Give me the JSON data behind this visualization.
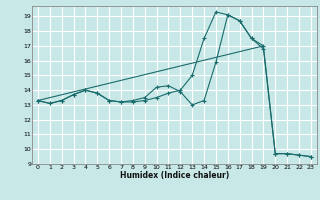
{
  "xlabel": "Humidex (Indice chaleur)",
  "bg_color": "#c8e8e8",
  "grid_color": "#ffffff",
  "line_color": "#1a6b6b",
  "xlim": [
    -0.5,
    23.5
  ],
  "ylim": [
    9.0,
    19.7
  ],
  "xticks": [
    0,
    1,
    2,
    3,
    4,
    5,
    6,
    7,
    8,
    9,
    10,
    11,
    12,
    13,
    14,
    15,
    16,
    17,
    18,
    19,
    20,
    21,
    22,
    23
  ],
  "yticks": [
    9,
    10,
    11,
    12,
    13,
    14,
    15,
    16,
    17,
    18,
    19
  ],
  "line1_x": [
    0,
    1,
    2,
    3,
    4,
    5,
    6,
    7,
    8,
    9,
    10,
    11,
    12,
    13,
    14,
    15,
    16,
    17,
    18,
    19,
    20,
    21,
    22,
    23
  ],
  "line1_y": [
    13.3,
    13.1,
    13.3,
    13.7,
    14.0,
    13.8,
    13.3,
    13.2,
    13.2,
    13.3,
    13.5,
    13.8,
    14.0,
    15.0,
    17.5,
    19.3,
    19.1,
    18.7,
    17.5,
    17.0,
    9.7,
    9.7,
    9.6,
    9.5
  ],
  "line2_x": [
    0,
    1,
    2,
    3,
    4,
    5,
    6,
    7,
    8,
    9,
    10,
    11,
    12,
    13,
    14,
    15,
    16,
    17,
    18,
    19,
    20,
    21,
    22,
    23
  ],
  "line2_y": [
    13.3,
    13.1,
    13.3,
    13.7,
    14.0,
    13.8,
    13.3,
    13.2,
    13.3,
    13.5,
    14.2,
    14.3,
    13.9,
    13.0,
    13.3,
    15.9,
    19.1,
    18.7,
    17.5,
    16.8,
    9.7,
    9.7,
    9.6,
    9.5
  ],
  "line3_x": [
    0,
    19
  ],
  "line3_y": [
    13.3,
    17.0
  ]
}
